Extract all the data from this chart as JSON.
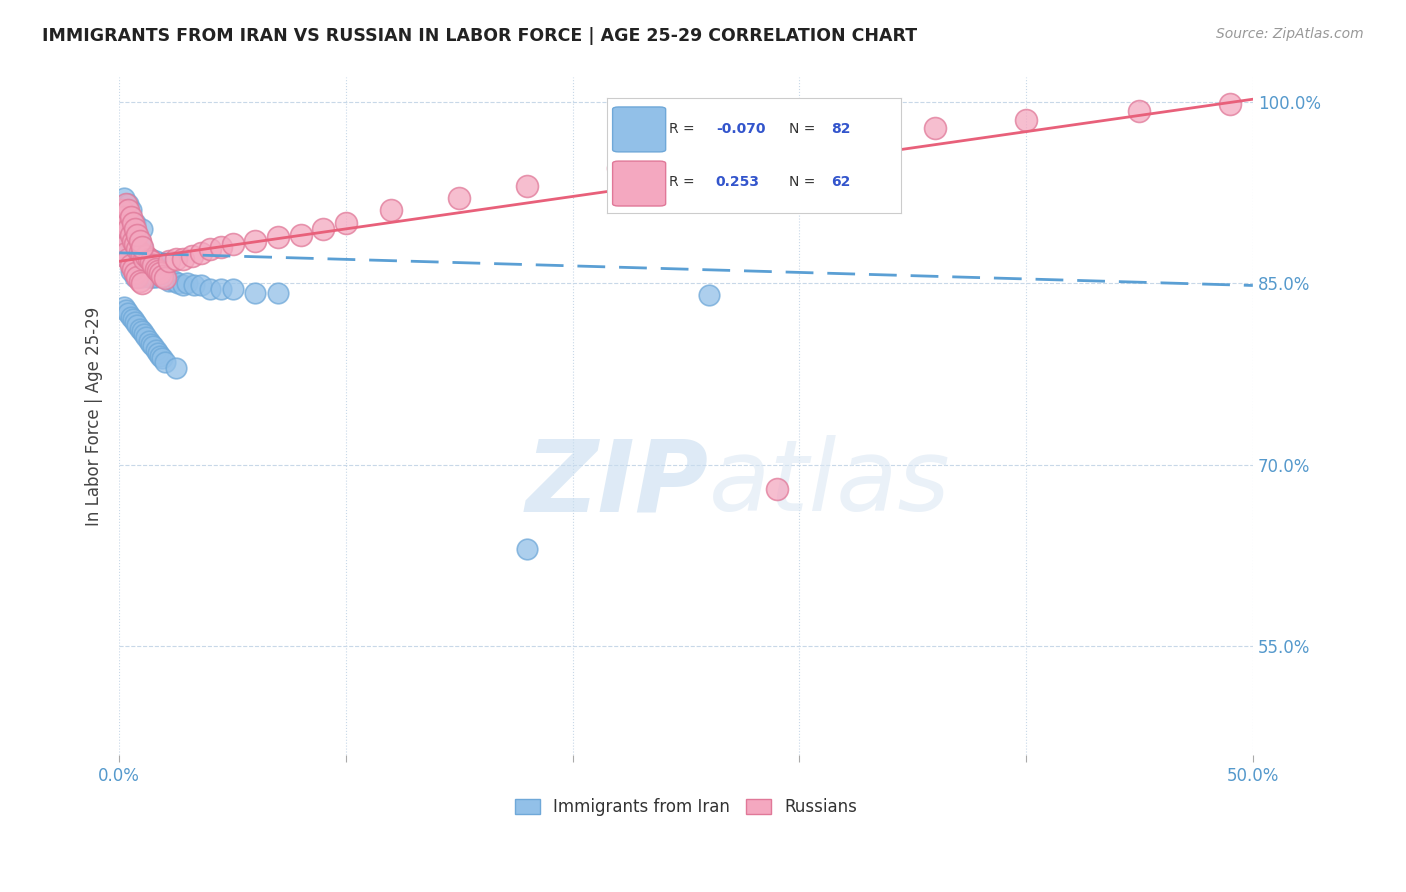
{
  "title": "IMMIGRANTS FROM IRAN VS RUSSIAN IN LABOR FORCE | AGE 25-29 CORRELATION CHART",
  "source": "Source: ZipAtlas.com",
  "ylabel": "In Labor Force | Age 25-29",
  "xlim": [
    0.0,
    0.5
  ],
  "ylim": [
    0.46,
    1.02
  ],
  "xticks": [
    0.0,
    0.1,
    0.2,
    0.3,
    0.4,
    0.5
  ],
  "xticklabels": [
    "0.0%",
    "",
    "",
    "",
    "",
    "50.0%"
  ],
  "yticks": [
    0.55,
    0.7,
    0.85,
    1.0
  ],
  "yticklabels": [
    "55.0%",
    "70.0%",
    "85.0%",
    "100.0%"
  ],
  "iran_color": "#92c0e8",
  "iran_edge": "#6fa8d8",
  "russian_color": "#f4a8c0",
  "russian_edge": "#e07898",
  "trend_iran_color": "#5a9fd4",
  "trend_russian_color": "#e8607a",
  "iran_R": -0.07,
  "iran_N": 82,
  "russian_R": 0.253,
  "russian_N": 62,
  "watermark_zip": "ZIP",
  "watermark_atlas": "atlas",
  "iran_x": [
    0.001,
    0.001,
    0.002,
    0.002,
    0.002,
    0.003,
    0.003,
    0.003,
    0.004,
    0.004,
    0.004,
    0.005,
    0.005,
    0.005,
    0.005,
    0.006,
    0.006,
    0.006,
    0.007,
    0.007,
    0.007,
    0.007,
    0.008,
    0.008,
    0.008,
    0.009,
    0.009,
    0.009,
    0.01,
    0.01,
    0.01,
    0.01,
    0.011,
    0.011,
    0.012,
    0.012,
    0.013,
    0.013,
    0.014,
    0.014,
    0.015,
    0.015,
    0.016,
    0.016,
    0.017,
    0.018,
    0.019,
    0.02,
    0.022,
    0.024,
    0.026,
    0.028,
    0.03,
    0.033,
    0.036,
    0.04,
    0.045,
    0.05,
    0.06,
    0.07,
    0.002,
    0.003,
    0.004,
    0.005,
    0.006,
    0.007,
    0.008,
    0.009,
    0.01,
    0.011,
    0.012,
    0.013,
    0.014,
    0.015,
    0.016,
    0.017,
    0.018,
    0.019,
    0.02,
    0.025,
    0.18,
    0.26
  ],
  "iran_y": [
    0.89,
    0.91,
    0.88,
    0.905,
    0.92,
    0.875,
    0.895,
    0.91,
    0.87,
    0.895,
    0.915,
    0.86,
    0.875,
    0.895,
    0.91,
    0.865,
    0.88,
    0.9,
    0.855,
    0.87,
    0.885,
    0.9,
    0.86,
    0.875,
    0.89,
    0.855,
    0.87,
    0.885,
    0.855,
    0.87,
    0.88,
    0.895,
    0.858,
    0.872,
    0.858,
    0.872,
    0.855,
    0.87,
    0.855,
    0.87,
    0.855,
    0.868,
    0.855,
    0.868,
    0.858,
    0.858,
    0.855,
    0.855,
    0.852,
    0.852,
    0.85,
    0.848,
    0.85,
    0.848,
    0.848,
    0.845,
    0.845,
    0.845,
    0.842,
    0.842,
    0.83,
    0.828,
    0.825,
    0.822,
    0.82,
    0.818,
    0.815,
    0.812,
    0.81,
    0.808,
    0.805,
    0.802,
    0.8,
    0.798,
    0.795,
    0.792,
    0.79,
    0.788,
    0.785,
    0.78,
    0.63,
    0.84
  ],
  "russian_x": [
    0.001,
    0.001,
    0.002,
    0.002,
    0.003,
    0.003,
    0.004,
    0.004,
    0.005,
    0.005,
    0.006,
    0.006,
    0.007,
    0.007,
    0.008,
    0.008,
    0.009,
    0.009,
    0.01,
    0.01,
    0.011,
    0.012,
    0.013,
    0.014,
    0.015,
    0.016,
    0.017,
    0.018,
    0.019,
    0.02,
    0.022,
    0.025,
    0.028,
    0.032,
    0.036,
    0.04,
    0.045,
    0.05,
    0.06,
    0.07,
    0.08,
    0.09,
    0.1,
    0.12,
    0.15,
    0.18,
    0.22,
    0.26,
    0.31,
    0.36,
    0.4,
    0.45,
    0.49,
    0.003,
    0.004,
    0.005,
    0.006,
    0.007,
    0.008,
    0.009,
    0.01,
    0.29
  ],
  "russian_y": [
    0.89,
    0.91,
    0.88,
    0.905,
    0.875,
    0.9,
    0.87,
    0.895,
    0.865,
    0.89,
    0.862,
    0.885,
    0.858,
    0.882,
    0.855,
    0.878,
    0.852,
    0.876,
    0.85,
    0.874,
    0.87,
    0.872,
    0.87,
    0.868,
    0.865,
    0.862,
    0.86,
    0.858,
    0.856,
    0.854,
    0.868,
    0.87,
    0.87,
    0.872,
    0.875,
    0.878,
    0.88,
    0.882,
    0.885,
    0.888,
    0.89,
    0.895,
    0.9,
    0.91,
    0.92,
    0.93,
    0.945,
    0.958,
    0.968,
    0.978,
    0.985,
    0.992,
    0.998,
    0.915,
    0.91,
    0.905,
    0.9,
    0.895,
    0.89,
    0.885,
    0.88,
    0.68
  ]
}
